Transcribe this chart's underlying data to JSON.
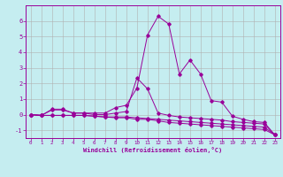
{
  "xlabel": "Windchill (Refroidissement éolien,°C)",
  "xlim": [
    -0.5,
    23.5
  ],
  "ylim": [
    -1.5,
    7.0
  ],
  "yticks": [
    -1,
    0,
    1,
    2,
    3,
    4,
    5,
    6
  ],
  "xticks": [
    0,
    1,
    2,
    3,
    4,
    5,
    6,
    7,
    8,
    9,
    10,
    11,
    12,
    13,
    14,
    15,
    16,
    17,
    18,
    19,
    20,
    21,
    22,
    23
  ],
  "bg_color": "#c5edf0",
  "line_color": "#990099",
  "grid_color": "#b0b0b0",
  "series": [
    [
      0.0,
      -0.05,
      0.35,
      0.35,
      0.1,
      0.1,
      0.1,
      0.1,
      0.45,
      0.6,
      1.7,
      5.1,
      6.3,
      5.8,
      2.6,
      3.5,
      2.6,
      0.9,
      0.8,
      -0.1,
      -0.3,
      -0.45,
      -0.5,
      -1.3
    ],
    [
      0.0,
      -0.05,
      0.3,
      0.3,
      0.1,
      0.1,
      0.0,
      0.0,
      0.1,
      0.2,
      2.35,
      1.65,
      0.1,
      -0.05,
      -0.15,
      -0.2,
      -0.25,
      -0.3,
      -0.35,
      -0.45,
      -0.5,
      -0.55,
      -0.6,
      -1.3
    ],
    [
      0.0,
      -0.05,
      -0.05,
      -0.05,
      -0.05,
      -0.05,
      -0.1,
      -0.15,
      -0.15,
      -0.15,
      -0.2,
      -0.25,
      -0.3,
      -0.35,
      -0.4,
      -0.45,
      -0.5,
      -0.55,
      -0.6,
      -0.65,
      -0.7,
      -0.75,
      -0.8,
      -1.3
    ],
    [
      0.0,
      -0.05,
      -0.05,
      -0.05,
      -0.05,
      -0.05,
      -0.1,
      -0.15,
      -0.2,
      -0.2,
      -0.3,
      -0.3,
      -0.4,
      -0.5,
      -0.55,
      -0.6,
      -0.65,
      -0.7,
      -0.75,
      -0.8,
      -0.85,
      -0.9,
      -0.95,
      -1.3
    ]
  ]
}
